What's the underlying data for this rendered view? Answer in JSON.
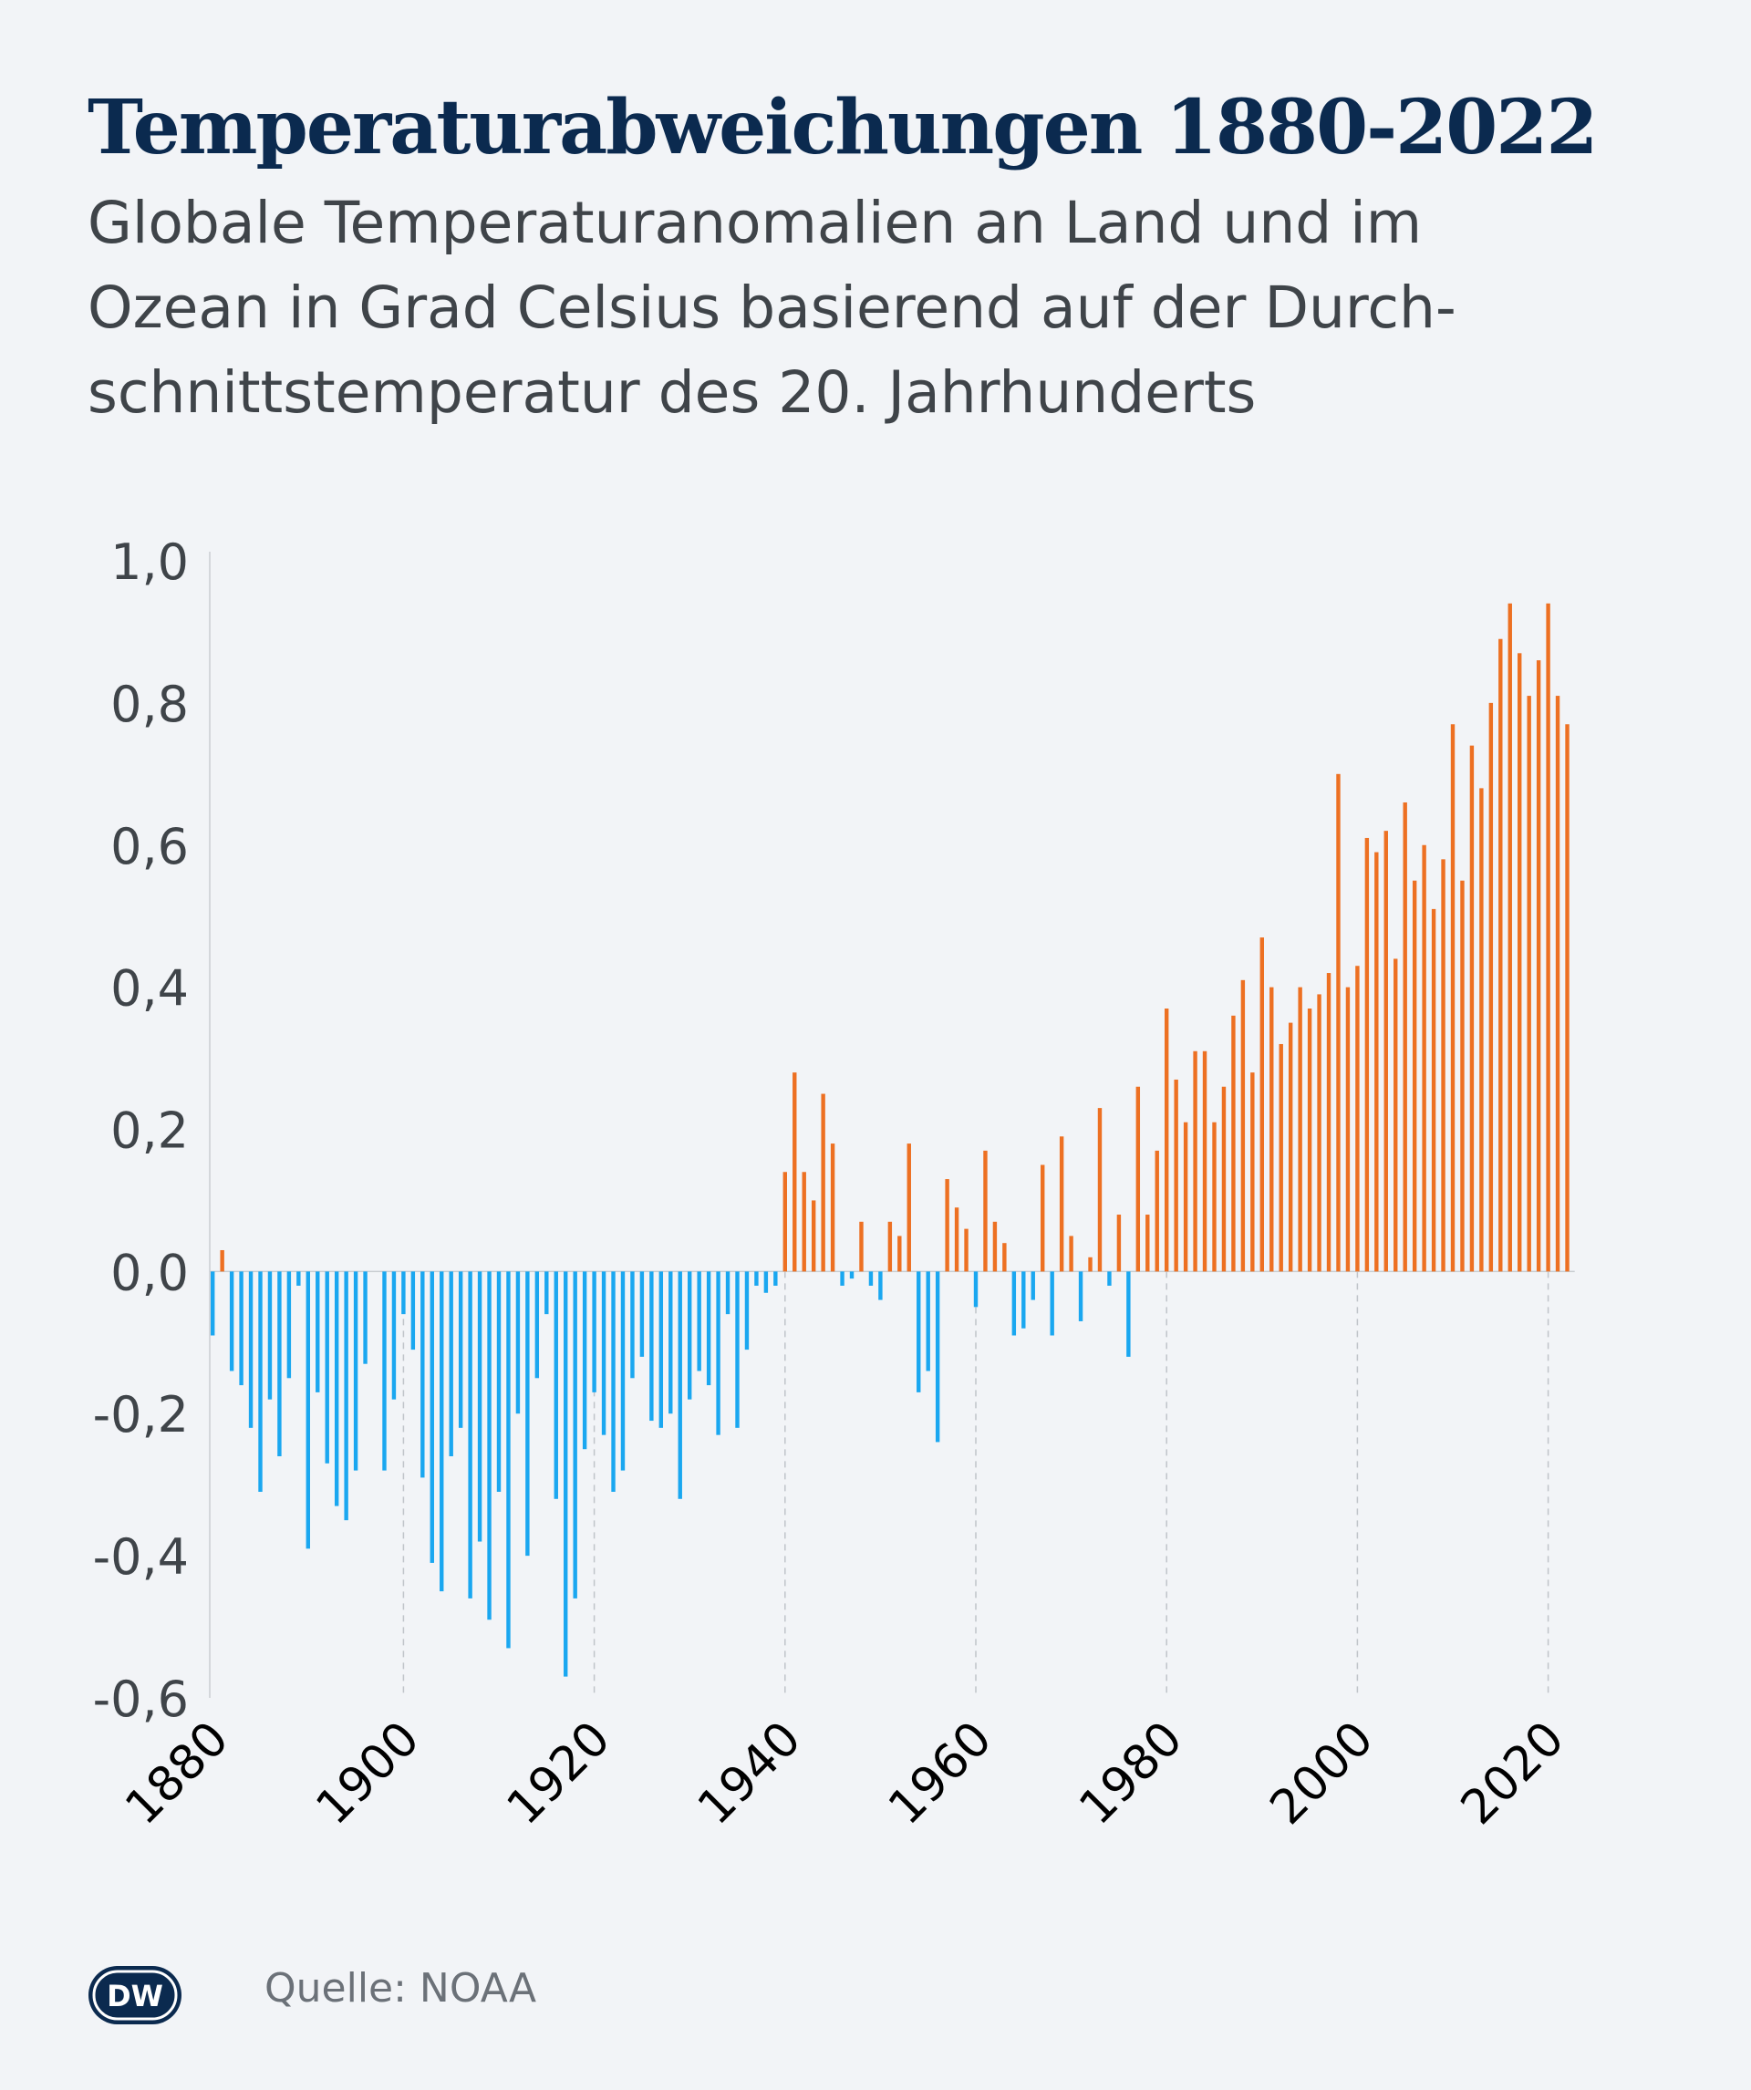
{
  "header": {
    "title": "Temperaturabweichungen 1880-2022",
    "subtitle_lines": [
      "Globale Temperaturanomalien an Land und im",
      "Ozean in Grad Celsius basierend auf der Durch-",
      "schnittstemperatur des 20. Jahrhunderts"
    ]
  },
  "footer": {
    "logo_text": "DW",
    "source": "Quelle: NOAA"
  },
  "colors": {
    "positive": "#ed7022",
    "negative": "#1aa7f0",
    "title": "#0b2a4f",
    "text": "#3f4449",
    "axis": "#c9cdd2",
    "grid": "#c0c4c9"
  },
  "chart_data": {
    "type": "bar",
    "title": "Temperaturabweichungen 1880-2022",
    "xlabel": "",
    "ylabel": "",
    "ylim": [
      -0.6,
      1.0
    ],
    "grid": "vertical dashed lines at 20-year steps",
    "yticks": [
      "1,0",
      "0,8",
      "0,6",
      "0,4",
      "0,2",
      "0,0",
      "-0,2",
      "-0,4",
      "-0,6"
    ],
    "ytick_values": [
      1.0,
      0.8,
      0.6,
      0.4,
      0.2,
      0.0,
      -0.2,
      -0.4,
      -0.6
    ],
    "xticks": [
      "1880",
      "1900",
      "1920",
      "1940",
      "1960",
      "1980",
      "2000",
      "2020"
    ],
    "xtick_values": [
      1880,
      1900,
      1920,
      1940,
      1960,
      1980,
      2000,
      2020
    ],
    "start_year": 1880,
    "values": [
      -0.09,
      0.03,
      -0.14,
      -0.16,
      -0.22,
      -0.31,
      -0.18,
      -0.26,
      -0.15,
      -0.02,
      -0.39,
      -0.17,
      -0.27,
      -0.33,
      -0.35,
      -0.28,
      -0.13,
      0.0,
      -0.28,
      -0.18,
      -0.06,
      -0.11,
      -0.29,
      -0.41,
      -0.45,
      -0.26,
      -0.22,
      -0.46,
      -0.38,
      -0.49,
      -0.31,
      -0.53,
      -0.2,
      -0.4,
      -0.15,
      -0.06,
      -0.32,
      -0.57,
      -0.46,
      -0.25,
      -0.17,
      -0.23,
      -0.31,
      -0.28,
      -0.15,
      -0.12,
      -0.21,
      -0.22,
      -0.2,
      -0.32,
      -0.18,
      -0.14,
      -0.16,
      -0.23,
      -0.06,
      -0.22,
      -0.11,
      -0.02,
      -0.03,
      -0.02,
      0.14,
      0.28,
      0.14,
      0.1,
      0.25,
      0.18,
      -0.02,
      -0.01,
      0.07,
      -0.02,
      -0.04,
      0.07,
      0.05,
      0.18,
      -0.17,
      -0.14,
      -0.24,
      0.13,
      0.09,
      0.06,
      -0.05,
      0.17,
      0.07,
      0.04,
      -0.09,
      -0.08,
      -0.04,
      0.15,
      -0.09,
      0.19,
      0.05,
      -0.07,
      0.02,
      0.23,
      -0.02,
      0.08,
      -0.12,
      0.26,
      0.08,
      0.17,
      0.37,
      0.27,
      0.21,
      0.31,
      0.31,
      0.21,
      0.26,
      0.36,
      0.41,
      0.28,
      0.47,
      0.4,
      0.32,
      0.35,
      0.4,
      0.37,
      0.39,
      0.42,
      0.7,
      0.4,
      0.43,
      0.61,
      0.59,
      0.62,
      0.44,
      0.66,
      0.55,
      0.6,
      0.51,
      0.58,
      0.77,
      0.55,
      0.74,
      0.68,
      0.8,
      0.89,
      0.94,
      0.87,
      0.81,
      0.86,
      0.94,
      0.81,
      0.77
    ]
  }
}
